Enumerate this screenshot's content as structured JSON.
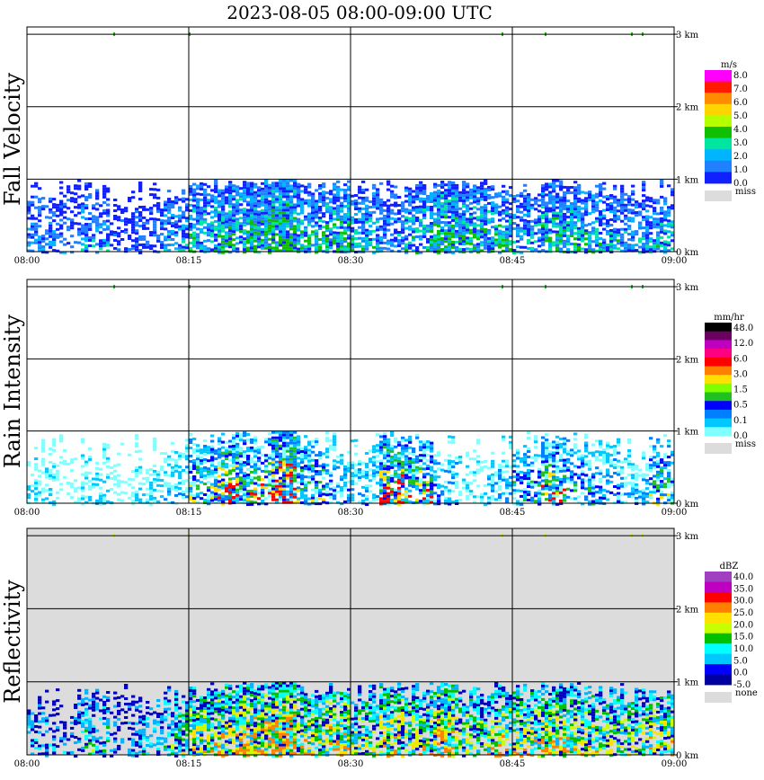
{
  "title": "2023-08-05   08:00-09:00 UTC",
  "x_ticks": [
    "08:00",
    "08:15",
    "08:30",
    "08:45",
    "09:00"
  ],
  "y_ticks": [
    "0 km",
    "1 km",
    "2 km",
    "3 km"
  ],
  "chart_data": [
    {
      "type": "heatmap",
      "title": "Fall Velocity",
      "x_range": [
        "08:00",
        "09:00"
      ],
      "y_range_km": [
        0,
        3.1
      ],
      "echo_top_km": 1.0,
      "legend_unit": "m/s",
      "legend_labels": [
        "8.0",
        "7.0",
        "6.0",
        "5.0",
        "4.0",
        "3.0",
        "2.0",
        "1.0",
        "0.0"
      ],
      "legend_colors": [
        "#ff00ff",
        "#ff1a00",
        "#ff8c00",
        "#ffd400",
        "#b4ff00",
        "#10c000",
        "#00e6a0",
        "#00b4ff",
        "#2080ff",
        "#1020ff"
      ],
      "missing_label": "miss",
      "background": "#ffffff",
      "rain_colors": [
        "#1020ff",
        "#2080ff",
        "#00b4ff",
        "#00e6a0",
        "#10c000"
      ],
      "intensity": [
        0.4,
        0.3,
        0.5,
        0.2,
        0.3,
        0.5,
        0.7,
        0.8,
        0.9,
        1.0,
        0.7,
        0.8,
        0.6,
        0.5,
        0.7,
        0.9,
        0.8,
        0.7,
        0.6,
        0.8,
        0.7,
        0.6,
        0.5,
        0.6
      ],
      "top3km_marks": [
        8,
        15,
        44,
        48,
        56,
        57
      ]
    },
    {
      "type": "heatmap",
      "title": "Rain Intensity",
      "x_range": [
        "08:00",
        "09:00"
      ],
      "y_range_km": [
        0,
        3.1
      ],
      "echo_top_km": 1.0,
      "legend_unit": "mm/hr",
      "legend_labels": [
        "48.0",
        "12.0",
        "6.0",
        "3.0",
        "1.5",
        "0.5",
        "0.1",
        "0.0"
      ],
      "legend_colors": [
        "#000000",
        "#6a0060",
        "#c000c0",
        "#ff0080",
        "#ff0000",
        "#ff8000",
        "#ffe000",
        "#80ff00",
        "#20c020",
        "#0000ff",
        "#0080ff",
        "#00c8ff",
        "#80ffff"
      ],
      "missing_label": "miss",
      "background": "#ffffff",
      "rain_colors": [
        "#80ffff",
        "#00c8ff",
        "#0080ff",
        "#0000ff",
        "#20c020",
        "#ffe000",
        "#ff0000"
      ],
      "intensity": [
        0.2,
        0.1,
        0.2,
        0.1,
        0.2,
        0.3,
        0.6,
        0.8,
        0.7,
        1.0,
        0.6,
        0.4,
        0.3,
        0.8,
        0.7,
        0.4,
        0.2,
        0.3,
        0.5,
        0.7,
        0.5,
        0.4,
        0.3,
        0.6
      ],
      "top3km_marks": [
        8,
        15,
        44,
        48,
        56,
        57
      ]
    },
    {
      "type": "heatmap",
      "title": "Reflectivity",
      "x_range": [
        "08:00",
        "09:00"
      ],
      "y_range_km": [
        0,
        3.1
      ],
      "echo_top_km": 1.0,
      "legend_unit": "dBZ",
      "legend_labels": [
        "40.0",
        "35.0",
        "30.0",
        "25.0",
        "20.0",
        "15.0",
        "10.0",
        "5.0",
        "0.0",
        "-5.0"
      ],
      "legend_colors": [
        "#a040c0",
        "#c000c0",
        "#ff0000",
        "#ff8000",
        "#ffe000",
        "#c8ff00",
        "#00c000",
        "#00ffff",
        "#00c8ff",
        "#0000ff",
        "#0000a0"
      ],
      "missing_label": "none",
      "background": "#dcdcdc",
      "rain_colors": [
        "#0000c0",
        "#00b4ff",
        "#00ffff",
        "#00c000",
        "#c8ff00",
        "#ffe000",
        "#ff8000"
      ],
      "intensity": [
        0.3,
        0.2,
        0.4,
        0.2,
        0.3,
        0.5,
        0.7,
        0.8,
        0.9,
        1.0,
        0.7,
        0.8,
        0.6,
        0.8,
        0.7,
        0.9,
        0.6,
        0.7,
        0.7,
        0.8,
        0.7,
        0.6,
        0.6,
        0.7
      ],
      "top3km_marks": [
        8,
        15,
        44,
        48,
        56,
        57
      ]
    }
  ]
}
